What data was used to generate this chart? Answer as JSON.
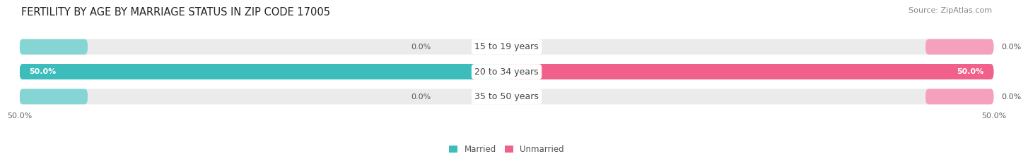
{
  "title": "FERTILITY BY AGE BY MARRIAGE STATUS IN ZIP CODE 17005",
  "source": "Source: ZipAtlas.com",
  "categories": [
    "15 to 19 years",
    "20 to 34 years",
    "35 to 50 years"
  ],
  "married_values": [
    0.0,
    50.0,
    0.0
  ],
  "unmarried_values": [
    0.0,
    50.0,
    0.0
  ],
  "xlim_left": -50,
  "xlim_right": 50,
  "married_color": "#3DBCBC",
  "married_color_light": "#85D5D5",
  "unmarried_color": "#F0608A",
  "unmarried_color_light": "#F5A0BC",
  "bar_bg_color": "#EBEBEB",
  "bar_height": 0.62,
  "bar_gap": 0.18,
  "title_fontsize": 10.5,
  "label_fontsize": 8,
  "axis_label_fontsize": 8,
  "source_fontsize": 8,
  "category_fontsize": 9,
  "value_label_color": "#555555",
  "category_label_color": "#444444",
  "title_color": "#222222",
  "source_color": "#888888",
  "tick_label_color": "#666666"
}
